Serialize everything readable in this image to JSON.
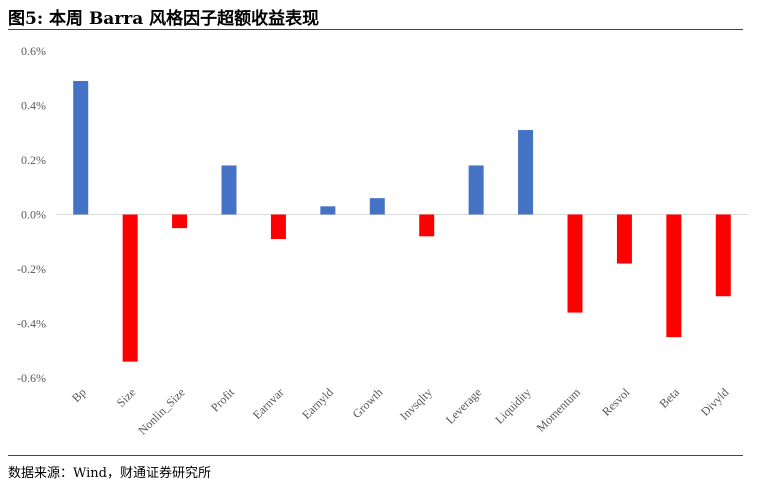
{
  "title": "图5: 本周 Barra 风格因子超额收益表现",
  "source": "数据来源：Wind，财通证券研究所",
  "colors": {
    "positive": "#4472C4",
    "negative": "#FF0000",
    "axis": "#D9D9D9",
    "tick_text": "#595959",
    "rule": "#1F4E79"
  },
  "chart_data": {
    "type": "bar",
    "title": "",
    "xlabel": "",
    "ylabel": "",
    "categories": [
      "Bp",
      "Size",
      "Nonlin_Size",
      "Profit",
      "Earnvar",
      "Earnyld",
      "Growth",
      "Invsqlty",
      "Leverage",
      "Liquidity",
      "Momentum",
      "Resvol",
      "Beta",
      "Divyld"
    ],
    "values": [
      0.49,
      -0.54,
      -0.05,
      0.18,
      -0.09,
      0.03,
      0.06,
      -0.08,
      0.18,
      0.31,
      -0.36,
      -0.18,
      -0.45,
      -0.3
    ],
    "ylim": [
      -0.6,
      0.6
    ],
    "yticks": [
      0.6,
      0.4,
      0.2,
      0.0,
      -0.2,
      -0.4,
      -0.6
    ],
    "ytick_labels": [
      "0.6%",
      "0.4%",
      "0.2%",
      "0.0%",
      "-0.2%",
      "-0.4%",
      "-0.6%"
    ],
    "unit": "%",
    "grid": false,
    "legend": "none"
  }
}
